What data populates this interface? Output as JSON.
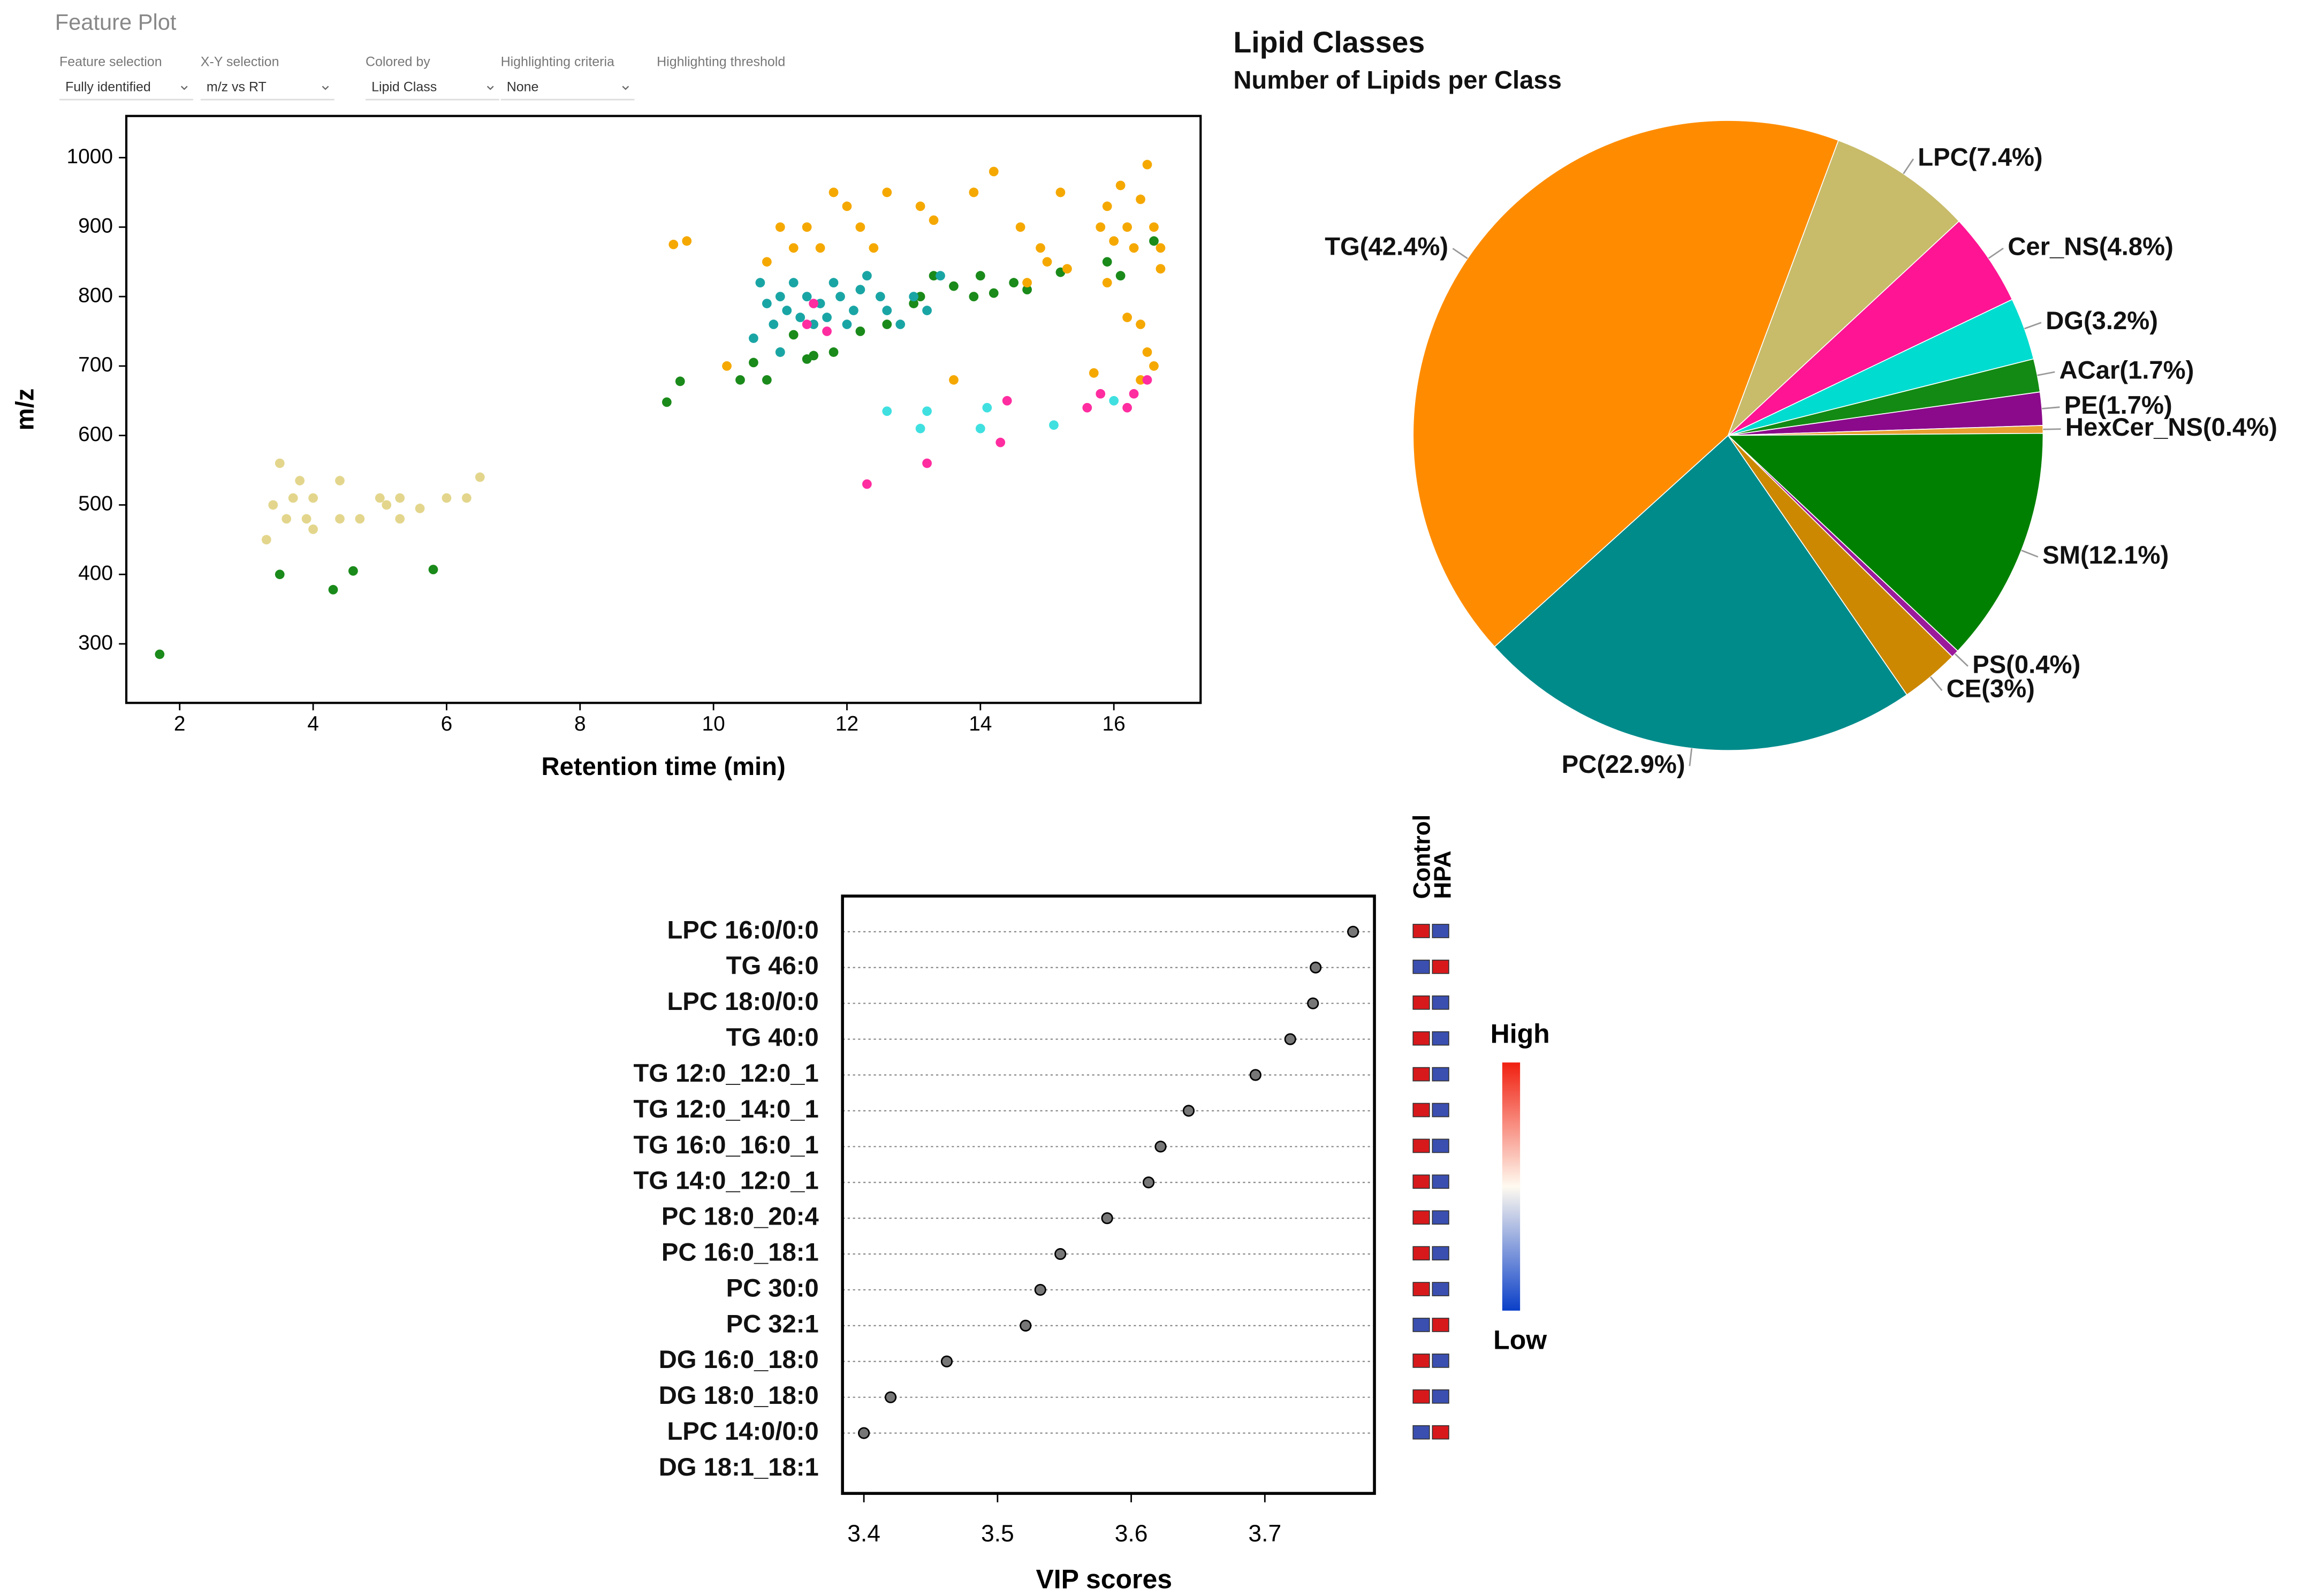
{
  "header": {
    "title": "Feature Plot"
  },
  "controls": [
    {
      "label": "Feature selection",
      "value": "Fully identified"
    },
    {
      "label": "X-Y selection",
      "value": "m/z vs RT"
    },
    {
      "label": "Colored by",
      "value": "Lipid Class"
    },
    {
      "label": "Highlighting criteria",
      "value": "None"
    },
    {
      "label": "Highlighting threshold"
    }
  ],
  "chart_data": [
    {
      "type": "scatter",
      "xlabel": "Retention time (min)",
      "ylabel": "m/z",
      "xlim": [
        1.2,
        17.3
      ],
      "ylim": [
        215,
        1060
      ],
      "xticks": [
        2,
        4,
        6,
        8,
        10,
        12,
        14,
        16
      ],
      "yticks": [
        300,
        400,
        500,
        600,
        700,
        800,
        900,
        1000
      ],
      "series": [
        {
          "color": "#e3d68c",
          "x": [
            3.3,
            3.5,
            3.6,
            3.7,
            3.8,
            3.9,
            4.0,
            4.0,
            4.4,
            4.4,
            4.7,
            5.0,
            5.1,
            5.3,
            5.3,
            5.6,
            6.0,
            6.3,
            6.5,
            3.4
          ],
          "y": [
            450,
            560,
            480,
            510,
            535,
            480,
            510,
            465,
            535,
            480,
            480,
            510,
            500,
            510,
            480,
            495,
            510,
            510,
            540,
            500
          ]
        },
        {
          "color": "#1a8a1a",
          "x": [
            1.7,
            3.5,
            4.3,
            4.6,
            5.8,
            9.3,
            9.5,
            10.4,
            10.6,
            10.8,
            11.0,
            11.2,
            11.5,
            11.4,
            11.8,
            12.2,
            12.6,
            13.0,
            13.1,
            13.3,
            13.6,
            13.9,
            14.0,
            14.2,
            14.5,
            14.7,
            15.2,
            15.9,
            16.1,
            16.6
          ],
          "y": [
            285,
            400,
            378,
            405,
            407,
            648,
            678,
            680,
            705,
            680,
            720,
            745,
            715,
            710,
            720,
            750,
            760,
            790,
            800,
            830,
            815,
            800,
            830,
            805,
            820,
            810,
            835,
            850,
            830,
            880
          ]
        },
        {
          "color": "#1aa5a5",
          "x": [
            10.7,
            10.8,
            10.9,
            11.0,
            11.1,
            11.2,
            11.3,
            11.4,
            11.5,
            11.6,
            11.7,
            11.8,
            11.9,
            12.0,
            12.1,
            12.2,
            12.3,
            12.5,
            12.6,
            12.8,
            13.0,
            13.2,
            13.4,
            10.6,
            11.0
          ],
          "y": [
            820,
            790,
            760,
            800,
            780,
            820,
            770,
            800,
            760,
            790,
            770,
            820,
            800,
            760,
            780,
            810,
            830,
            800,
            780,
            760,
            800,
            780,
            830,
            740,
            720
          ]
        },
        {
          "color": "#f5a800",
          "x": [
            9.4,
            9.6,
            10.2,
            10.8,
            11.0,
            11.2,
            11.4,
            11.6,
            11.8,
            12.0,
            12.2,
            12.4,
            12.6,
            13.1,
            13.3,
            13.6,
            13.9,
            14.2,
            14.6,
            14.7,
            14.9,
            15.0,
            15.2,
            15.3,
            15.8,
            15.9,
            16.0,
            16.1,
            16.2,
            16.3,
            16.4,
            16.5,
            16.6,
            16.7,
            16.4,
            16.5,
            16.6,
            16.2,
            15.9,
            16.7,
            15.7,
            16.4
          ],
          "y": [
            875,
            880,
            700,
            850,
            900,
            870,
            900,
            870,
            950,
            930,
            900,
            870,
            950,
            930,
            910,
            680,
            950,
            980,
            900,
            820,
            870,
            850,
            950,
            840,
            900,
            930,
            880,
            960,
            900,
            870,
            940,
            990,
            900,
            870,
            760,
            720,
            700,
            770,
            820,
            840,
            690,
            680
          ]
        },
        {
          "color": "#ff2da0",
          "x": [
            11.4,
            11.7,
            12.3,
            13.2,
            14.3,
            14.4,
            15.6,
            15.8,
            16.2,
            16.3,
            16.5,
            11.5
          ],
          "y": [
            760,
            750,
            530,
            560,
            590,
            650,
            640,
            660,
            640,
            660,
            680,
            790
          ]
        },
        {
          "color": "#40e0e0",
          "x": [
            12.6,
            13.1,
            13.2,
            14.0,
            14.1,
            15.1,
            16.0
          ],
          "y": [
            635,
            610,
            635,
            610,
            640,
            615,
            650
          ]
        }
      ]
    },
    {
      "type": "pie",
      "title": "Lipid Classes",
      "subtitle": "Number of Lipids per Class",
      "start_angle": 20.5,
      "categories": [
        "LPC",
        "Cer_NS",
        "DG",
        "ACar",
        "PE",
        "HexCer_NS",
        "SM",
        "PS",
        "CE",
        "PC",
        "TG"
      ],
      "values": [
        7.4,
        4.8,
        3.2,
        1.7,
        1.7,
        0.4,
        12.1,
        0.4,
        3,
        22.9,
        42.4
      ],
      "value_labels": [
        "LPC(7.4%)",
        "Cer_NS(4.8%)",
        "DG(3.2%)",
        "ACar(1.7%)",
        "PE(1.7%)",
        "HexCer_NS(0.4%)",
        "SM(12.1%)",
        "PS(0.4%)",
        "CE(3%)",
        "PC(22.9%)",
        "TG(42.4%)"
      ],
      "colors": [
        "#c8bb6a",
        "#ff1493",
        "#00dcd0",
        "#138a13",
        "#8b0a8b",
        "#e8a030",
        "#008000",
        "#9b1a9b",
        "#cc8800",
        "#008b8b",
        "#ff8c00"
      ]
    },
    {
      "type": "dot",
      "xlabel": "VIP scores",
      "xlim": [
        3.384,
        3.782
      ],
      "xticks": [
        3.4,
        3.5,
        3.6,
        3.7
      ],
      "categories": [
        "LPC 16:0/0:0",
        "TG 46:0",
        "LPC 18:0/0:0",
        "TG 40:0",
        "TG 12:0_12:0_1",
        "TG 12:0_14:0_1",
        "TG 16:0_16:0_1",
        "TG 14:0_12:0_1",
        "PC 18:0_20:4",
        "PC 16:0_18:1",
        "PC 30:0",
        "PC 32:1",
        "DG 16:0_18:0",
        "DG 18:0_18:0",
        "LPC 14:0/0:0",
        "DG 18:1_18:1"
      ],
      "values": [
        3.766,
        3.738,
        3.736,
        3.719,
        3.693,
        3.643,
        3.622,
        3.613,
        3.582,
        3.547,
        3.532,
        3.521,
        3.462,
        3.42,
        3.4,
        null
      ],
      "heatmap_columns": [
        "Control",
        "HPA"
      ],
      "heat_colors": [
        [
          "#d7191c",
          "#3a4fb0"
        ],
        [
          "#3a4fb0",
          "#d7191c"
        ],
        [
          "#d7191c",
          "#3a4fb0"
        ],
        [
          "#d7191c",
          "#3a4fb0"
        ],
        [
          "#d7191c",
          "#3a4fb0"
        ],
        [
          "#d7191c",
          "#3a4fb0"
        ],
        [
          "#d7191c",
          "#3a4fb0"
        ],
        [
          "#d7191c",
          "#3a4fb0"
        ],
        [
          "#d7191c",
          "#3a4fb0"
        ],
        [
          "#d7191c",
          "#3a4fb0"
        ],
        [
          "#d7191c",
          "#3a4fb0"
        ],
        [
          "#3a4fb0",
          "#d7191c"
        ],
        [
          "#d7191c",
          "#3a4fb0"
        ],
        [
          "#d7191c",
          "#3a4fb0"
        ],
        [
          "#3a4fb0",
          "#d7191c"
        ]
      ],
      "colorbar_labels": [
        "High",
        "Low"
      ]
    }
  ]
}
